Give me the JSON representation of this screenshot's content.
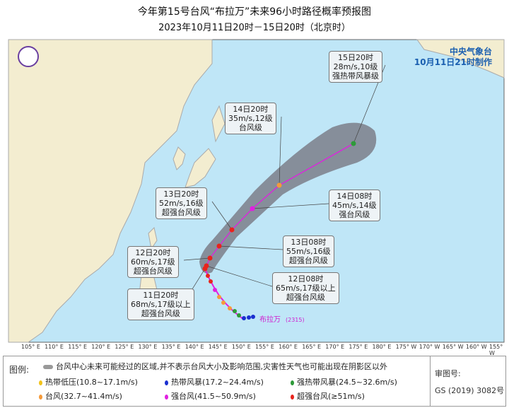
{
  "title": "今年第15号台风“布拉万”未来96小时路径概率预报图",
  "subtitle": "2023年10月11日20时－15日20时（北京时）",
  "agency": "中央气象台",
  "issued": "10月11日21时制作",
  "storm_label": "布拉万",
  "storm_code": "(2315)",
  "forecast_points": [
    {
      "time": "11日20时",
      "wind": "68m/s,17级以上",
      "level": "超强台风级",
      "color": "#e8241c"
    },
    {
      "time": "12日08时",
      "wind": "65m/s,17级以上",
      "level": "超强台风级",
      "color": "#e8241c"
    },
    {
      "time": "12日20时",
      "wind": "60m/s,17级",
      "level": "超强台风级",
      "color": "#e8241c"
    },
    {
      "time": "13日08时",
      "wind": "55m/s,16级",
      "level": "超强台风级",
      "color": "#e8241c"
    },
    {
      "time": "13日20时",
      "wind": "52m/s,16级",
      "level": "超强台风级",
      "color": "#e8241c"
    },
    {
      "time": "14日08时",
      "wind": "45m/s,14级",
      "level": "强台风级",
      "color": "#e020e0"
    },
    {
      "time": "14日20时",
      "wind": "35m/s,12级",
      "level": "台风级",
      "color": "#f59a3a"
    },
    {
      "time": "15日20时",
      "wind": "28m/s,10级",
      "level": "强热带风暴级",
      "color": "#2e9a3a"
    }
  ],
  "lon_ticks": [
    "105° E",
    "110° E",
    "115° E",
    "120° E",
    "125° E",
    "130° E",
    "135° E",
    "140° E",
    "145° E",
    "150° E",
    "155° E",
    "160° E",
    "165° E",
    "170° E",
    "175° E",
    "180° E",
    "175° W",
    "170° W",
    "165° W",
    "160° W",
    "155° W"
  ],
  "legend": {
    "title": "图例:",
    "cone": "台风中心未来可能经过的区域,并不表示台风大小及影响范围,灾害性天气也可能出现在阴影区以外",
    "items": [
      {
        "label": "热带低压(10.8~17.1m/s)",
        "color": "#f2c31a"
      },
      {
        "label": "热带风暴(17.2~24.4m/s)",
        "color": "#1a2fd0"
      },
      {
        "label": "强热带风暴(24.5~32.6m/s)",
        "color": "#2e9a3a"
      },
      {
        "label": "台风(32.7~41.4m/s)",
        "color": "#f59a3a"
      },
      {
        "label": "强台风(41.5~50.9m/s)",
        "color": "#e020e0"
      },
      {
        "label": "超强台风(≥51m/s)",
        "color": "#e8241c"
      }
    ],
    "review_label": "审图号:",
    "review_no": "GS (2019) 3082号"
  }
}
